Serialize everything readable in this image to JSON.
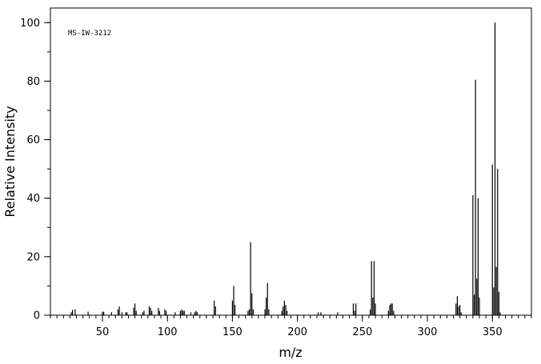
{
  "chart_data": {
    "type": "bar",
    "title": "",
    "annotation": "MS-IW-3212",
    "xlabel": "m/z",
    "ylabel": "Relative Intensity",
    "xlim": [
      10,
      380
    ],
    "ylim": [
      0,
      105
    ],
    "x_ticks": [
      50,
      100,
      150,
      200,
      250,
      300,
      350
    ],
    "y_ticks": [
      0,
      20,
      40,
      60,
      80,
      100
    ],
    "x_minor_step": 5,
    "y_minor_step": 10,
    "grid": false,
    "legend": "none",
    "peaks": [
      {
        "mz": 26,
        "intensity": 1.0
      },
      {
        "mz": 27,
        "intensity": 1.8
      },
      {
        "mz": 29,
        "intensity": 2.0
      },
      {
        "mz": 39,
        "intensity": 1.2
      },
      {
        "mz": 50,
        "intensity": 1.2
      },
      {
        "mz": 51,
        "intensity": 1.2
      },
      {
        "mz": 57,
        "intensity": 1.0
      },
      {
        "mz": 62,
        "intensity": 2.0
      },
      {
        "mz": 63,
        "intensity": 3.0
      },
      {
        "mz": 65,
        "intensity": 1.0
      },
      {
        "mz": 68,
        "intensity": 1.0
      },
      {
        "mz": 69,
        "intensity": 1.0
      },
      {
        "mz": 74,
        "intensity": 2.5
      },
      {
        "mz": 75,
        "intensity": 4.0
      },
      {
        "mz": 76,
        "intensity": 1.5
      },
      {
        "mz": 81,
        "intensity": 1.0
      },
      {
        "mz": 82,
        "intensity": 1.5
      },
      {
        "mz": 86,
        "intensity": 3.0
      },
      {
        "mz": 87,
        "intensity": 2.5
      },
      {
        "mz": 88,
        "intensity": 1.5
      },
      {
        "mz": 93,
        "intensity": 2.5
      },
      {
        "mz": 94,
        "intensity": 1.5
      },
      {
        "mz": 98,
        "intensity": 2.0
      },
      {
        "mz": 99,
        "intensity": 1.5
      },
      {
        "mz": 106,
        "intensity": 1.0
      },
      {
        "mz": 110,
        "intensity": 1.5
      },
      {
        "mz": 111,
        "intensity": 2.0
      },
      {
        "mz": 112,
        "intensity": 1.5
      },
      {
        "mz": 113,
        "intensity": 1.5
      },
      {
        "mz": 118,
        "intensity": 1.0
      },
      {
        "mz": 121,
        "intensity": 1.0
      },
      {
        "mz": 122,
        "intensity": 1.5
      },
      {
        "mz": 123,
        "intensity": 1.0
      },
      {
        "mz": 136,
        "intensity": 5.0
      },
      {
        "mz": 137,
        "intensity": 3.0
      },
      {
        "mz": 150,
        "intensity": 5.0
      },
      {
        "mz": 151,
        "intensity": 10.0
      },
      {
        "mz": 152,
        "intensity": 3.5
      },
      {
        "mz": 162,
        "intensity": 1.5
      },
      {
        "mz": 163,
        "intensity": 2.0
      },
      {
        "mz": 164,
        "intensity": 25.0
      },
      {
        "mz": 165,
        "intensity": 7.5
      },
      {
        "mz": 166,
        "intensity": 2.0
      },
      {
        "mz": 175,
        "intensity": 2.0
      },
      {
        "mz": 176,
        "intensity": 6.0
      },
      {
        "mz": 177,
        "intensity": 11.0
      },
      {
        "mz": 178,
        "intensity": 2.0
      },
      {
        "mz": 188,
        "intensity": 1.5
      },
      {
        "mz": 189,
        "intensity": 3.0
      },
      {
        "mz": 190,
        "intensity": 5.0
      },
      {
        "mz": 191,
        "intensity": 3.5
      },
      {
        "mz": 192,
        "intensity": 1.5
      },
      {
        "mz": 216,
        "intensity": 1.0
      },
      {
        "mz": 218,
        "intensity": 1.0
      },
      {
        "mz": 231,
        "intensity": 1.0
      },
      {
        "mz": 243,
        "intensity": 4.0
      },
      {
        "mz": 244,
        "intensity": 1.5
      },
      {
        "mz": 245,
        "intensity": 4.0
      },
      {
        "mz": 256,
        "intensity": 2.0
      },
      {
        "mz": 257,
        "intensity": 18.5
      },
      {
        "mz": 258,
        "intensity": 6.0
      },
      {
        "mz": 259,
        "intensity": 18.5
      },
      {
        "mz": 260,
        "intensity": 4.0
      },
      {
        "mz": 270,
        "intensity": 1.5
      },
      {
        "mz": 271,
        "intensity": 3.5
      },
      {
        "mz": 272,
        "intensity": 4.0
      },
      {
        "mz": 273,
        "intensity": 4.0
      },
      {
        "mz": 274,
        "intensity": 1.5
      },
      {
        "mz": 322,
        "intensity": 4.0
      },
      {
        "mz": 323,
        "intensity": 6.5
      },
      {
        "mz": 324,
        "intensity": 3.0
      },
      {
        "mz": 325,
        "intensity": 3.5
      },
      {
        "mz": 326,
        "intensity": 1.0
      },
      {
        "mz": 335,
        "intensity": 41.0
      },
      {
        "mz": 336,
        "intensity": 7.0
      },
      {
        "mz": 337,
        "intensity": 80.5
      },
      {
        "mz": 338,
        "intensity": 12.5
      },
      {
        "mz": 339,
        "intensity": 40.0
      },
      {
        "mz": 340,
        "intensity": 6.0
      },
      {
        "mz": 350,
        "intensity": 51.5
      },
      {
        "mz": 351,
        "intensity": 9.5
      },
      {
        "mz": 352,
        "intensity": 100.0
      },
      {
        "mz": 353,
        "intensity": 16.5
      },
      {
        "mz": 354,
        "intensity": 50.0
      },
      {
        "mz": 355,
        "intensity": 8.0
      },
      {
        "mz": 356,
        "intensity": 1.0
      }
    ]
  }
}
